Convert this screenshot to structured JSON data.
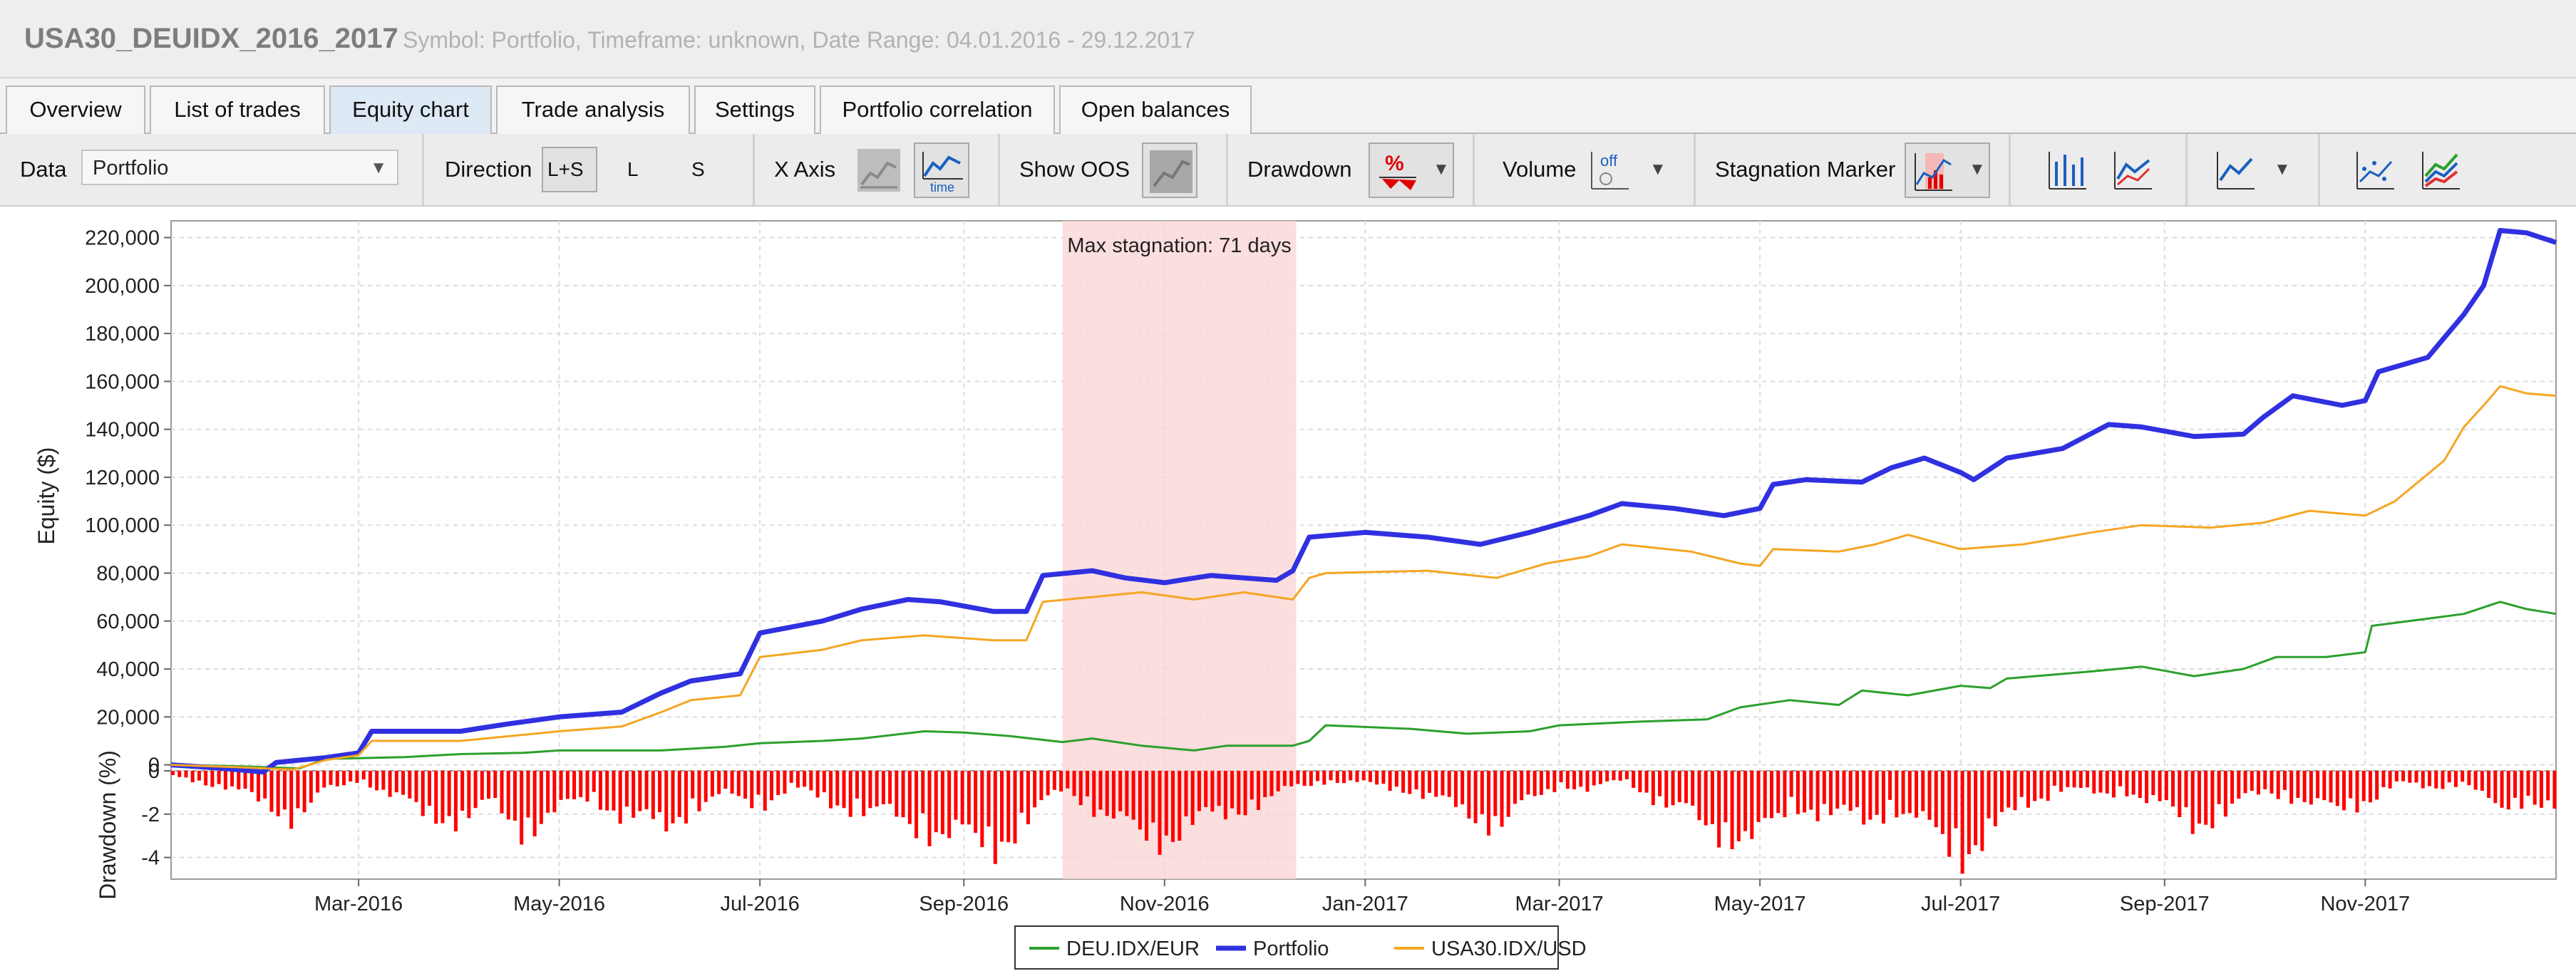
{
  "window": {
    "title": "USA30_DEUIDX_2016_2017",
    "subtitle": "Symbol: Portfolio, Timeframe: unknown, Date Range: 04.01.2016 - 29.12.2017"
  },
  "tabs": [
    {
      "label": "Overview",
      "active": false
    },
    {
      "label": "List of trades",
      "active": false
    },
    {
      "label": "Equity chart",
      "active": true
    },
    {
      "label": "Trade analysis",
      "active": false
    },
    {
      "label": "Settings",
      "active": false
    },
    {
      "label": "Portfolio correlation",
      "active": false
    },
    {
      "label": "Open balances",
      "active": false
    }
  ],
  "toolbar": {
    "data_label": "Data",
    "data_value": "Portfolio",
    "direction_label": "Direction",
    "direction_options": [
      "L+S",
      "L",
      "S"
    ],
    "direction_selected": "L+S",
    "xaxis_label": "X Axis",
    "xaxis_icons": [
      "trades-axis-icon",
      "time-axis-icon"
    ],
    "time_icon_text": "time",
    "oos_label": "Show OOS",
    "drawdown_label": "Drawdown",
    "drawdown_icon_text": "%",
    "volume_label": "Volume",
    "volume_icon_text": "off",
    "stagnation_label": "Stagnation Marker",
    "right_icons": [
      "bar-chart-icon",
      "line-chart-icon",
      "line-chart-dropdown-icon",
      "scatter-chart-icon",
      "multi-line-chart-icon"
    ]
  },
  "chart_data": {
    "type": "line",
    "title": "",
    "ylabel": "Equity ($)",
    "ylabel_bottom": "Drawdown (%)",
    "ylim": [
      -2500,
      227000
    ],
    "yticks": [
      0,
      20000,
      40000,
      60000,
      80000,
      100000,
      120000,
      140000,
      160000,
      180000,
      200000,
      220000
    ],
    "ytick_labels": [
      "0",
      "20,000",
      "40,000",
      "60,000",
      "80,000",
      "100,000",
      "120,000",
      "140,000",
      "160,000",
      "180,000",
      "200,000",
      "220,000"
    ],
    "xlim": [
      "2016-01-04",
      "2017-12-29"
    ],
    "xticks": [
      "2016-03-01",
      "2016-05-01",
      "2016-07-01",
      "2016-09-01",
      "2016-11-01",
      "2017-01-01",
      "2017-03-01",
      "2017-05-01",
      "2017-07-01",
      "2017-09-01",
      "2017-11-01"
    ],
    "xtick_labels": [
      "Mar-2016",
      "May-2016",
      "Jul-2016",
      "Sep-2016",
      "Nov-2016",
      "Jan-2017",
      "Mar-2017",
      "May-2017",
      "Jul-2017",
      "Sep-2017",
      "Nov-2017"
    ],
    "grid": true,
    "legend_position": "bottom-center",
    "stagnation": {
      "label": "Max stagnation: 71 days",
      "start": "2016-10-01",
      "end": "2016-12-11",
      "color": "#f9d3d3",
      "text_color": "#f08080"
    },
    "series": [
      {
        "name": "DEU.IDX/EUR",
        "color": "#2ca02c",
        "points": [
          [
            "2016-01-04",
            0
          ],
          [
            "2016-01-25",
            -600
          ],
          [
            "2016-02-12",
            -1500
          ],
          [
            "2016-02-20",
            2500
          ],
          [
            "2016-03-15",
            3200
          ],
          [
            "2016-04-01",
            4500
          ],
          [
            "2016-04-20",
            5000
          ],
          [
            "2016-05-01",
            6000
          ],
          [
            "2016-06-01",
            6000
          ],
          [
            "2016-06-20",
            7500
          ],
          [
            "2016-07-01",
            9000
          ],
          [
            "2016-07-20",
            10000
          ],
          [
            "2016-08-01",
            11000
          ],
          [
            "2016-08-20",
            14000
          ],
          [
            "2016-09-01",
            13500
          ],
          [
            "2016-09-15",
            12000
          ],
          [
            "2016-10-01",
            9500
          ],
          [
            "2016-10-10",
            11000
          ],
          [
            "2016-10-25",
            8000
          ],
          [
            "2016-11-10",
            6000
          ],
          [
            "2016-11-20",
            8000
          ],
          [
            "2016-12-10",
            8000
          ],
          [
            "2016-12-15",
            10000
          ],
          [
            "2016-12-20",
            16500
          ],
          [
            "2017-01-15",
            15000
          ],
          [
            "2017-02-01",
            13000
          ],
          [
            "2017-02-20",
            14000
          ],
          [
            "2017-03-01",
            16500
          ],
          [
            "2017-03-25",
            18000
          ],
          [
            "2017-04-15",
            19000
          ],
          [
            "2017-04-25",
            24000
          ],
          [
            "2017-05-10",
            27000
          ],
          [
            "2017-05-25",
            25000
          ],
          [
            "2017-06-01",
            31000
          ],
          [
            "2017-06-15",
            29000
          ],
          [
            "2017-07-01",
            33000
          ],
          [
            "2017-07-10",
            32000
          ],
          [
            "2017-07-15",
            36000
          ],
          [
            "2017-08-10",
            39000
          ],
          [
            "2017-08-25",
            41000
          ],
          [
            "2017-09-10",
            37000
          ],
          [
            "2017-09-25",
            40000
          ],
          [
            "2017-10-05",
            45000
          ],
          [
            "2017-10-20",
            45000
          ],
          [
            "2017-11-01",
            47000
          ],
          [
            "2017-11-03",
            58000
          ],
          [
            "2017-11-20",
            61000
          ],
          [
            "2017-12-01",
            63000
          ],
          [
            "2017-12-12",
            68000
          ],
          [
            "2017-12-20",
            65000
          ],
          [
            "2017-12-29",
            63000
          ]
        ]
      },
      {
        "name": "Portfolio",
        "color": "#3030e0",
        "points": [
          [
            "2016-01-04",
            0
          ],
          [
            "2016-01-20",
            -1500
          ],
          [
            "2016-02-01",
            -3000
          ],
          [
            "2016-02-05",
            1000
          ],
          [
            "2016-02-20",
            3000
          ],
          [
            "2016-03-01",
            5000
          ],
          [
            "2016-03-05",
            14000
          ],
          [
            "2016-04-01",
            14000
          ],
          [
            "2016-04-15",
            17000
          ],
          [
            "2016-05-01",
            20000
          ],
          [
            "2016-05-20",
            22000
          ],
          [
            "2016-06-01",
            30000
          ],
          [
            "2016-06-10",
            35000
          ],
          [
            "2016-06-25",
            38000
          ],
          [
            "2016-07-01",
            55000
          ],
          [
            "2016-07-20",
            60000
          ],
          [
            "2016-08-01",
            65000
          ],
          [
            "2016-08-15",
            69000
          ],
          [
            "2016-08-25",
            68000
          ],
          [
            "2016-09-10",
            64000
          ],
          [
            "2016-09-20",
            64000
          ],
          [
            "2016-09-25",
            79000
          ],
          [
            "2016-10-10",
            81000
          ],
          [
            "2016-10-20",
            78000
          ],
          [
            "2016-11-01",
            76000
          ],
          [
            "2016-11-15",
            79000
          ],
          [
            "2016-12-05",
            77000
          ],
          [
            "2016-12-10",
            81000
          ],
          [
            "2016-12-15",
            95000
          ],
          [
            "2017-01-01",
            97000
          ],
          [
            "2017-01-20",
            95000
          ],
          [
            "2017-02-05",
            92000
          ],
          [
            "2017-02-20",
            97000
          ],
          [
            "2017-03-10",
            104000
          ],
          [
            "2017-03-20",
            109000
          ],
          [
            "2017-04-05",
            107000
          ],
          [
            "2017-04-20",
            104000
          ],
          [
            "2017-05-01",
            107000
          ],
          [
            "2017-05-05",
            117000
          ],
          [
            "2017-05-15",
            119000
          ],
          [
            "2017-06-01",
            118000
          ],
          [
            "2017-06-10",
            124000
          ],
          [
            "2017-06-20",
            128000
          ],
          [
            "2017-07-01",
            122000
          ],
          [
            "2017-07-05",
            119000
          ],
          [
            "2017-07-15",
            128000
          ],
          [
            "2017-08-01",
            132000
          ],
          [
            "2017-08-15",
            142000
          ],
          [
            "2017-08-25",
            141000
          ],
          [
            "2017-09-10",
            137000
          ],
          [
            "2017-09-25",
            138000
          ],
          [
            "2017-10-01",
            145000
          ],
          [
            "2017-10-10",
            154000
          ],
          [
            "2017-10-25",
            150000
          ],
          [
            "2017-11-01",
            152000
          ],
          [
            "2017-11-05",
            164000
          ],
          [
            "2017-11-20",
            170000
          ],
          [
            "2017-12-01",
            188000
          ],
          [
            "2017-12-07",
            200000
          ],
          [
            "2017-12-12",
            223000
          ],
          [
            "2017-12-20",
            222000
          ],
          [
            "2017-12-29",
            218000
          ]
        ]
      },
      {
        "name": "USA30.IDX/USD",
        "color": "#f5a623",
        "points": [
          [
            "2016-01-04",
            0
          ],
          [
            "2016-01-25",
            -1000
          ],
          [
            "2016-02-10",
            -2000
          ],
          [
            "2016-02-20",
            2000
          ],
          [
            "2016-03-01",
            4000
          ],
          [
            "2016-03-05",
            10000
          ],
          [
            "2016-04-01",
            10000
          ],
          [
            "2016-05-01",
            14000
          ],
          [
            "2016-05-20",
            16000
          ],
          [
            "2016-06-01",
            22000
          ],
          [
            "2016-06-10",
            27000
          ],
          [
            "2016-06-25",
            29000
          ],
          [
            "2016-07-01",
            45000
          ],
          [
            "2016-07-20",
            48000
          ],
          [
            "2016-08-01",
            52000
          ],
          [
            "2016-08-20",
            54000
          ],
          [
            "2016-09-10",
            52000
          ],
          [
            "2016-09-20",
            52000
          ],
          [
            "2016-09-25",
            68000
          ],
          [
            "2016-10-10",
            70000
          ],
          [
            "2016-10-25",
            72000
          ],
          [
            "2016-11-10",
            69000
          ],
          [
            "2016-11-25",
            72000
          ],
          [
            "2016-12-10",
            69000
          ],
          [
            "2016-12-15",
            78000
          ],
          [
            "2016-12-20",
            80000
          ],
          [
            "2017-01-20",
            81000
          ],
          [
            "2017-02-10",
            78000
          ],
          [
            "2017-02-25",
            84000
          ],
          [
            "2017-03-10",
            87000
          ],
          [
            "2017-03-20",
            92000
          ],
          [
            "2017-04-10",
            89000
          ],
          [
            "2017-04-25",
            84000
          ],
          [
            "2017-05-01",
            83000
          ],
          [
            "2017-05-05",
            90000
          ],
          [
            "2017-05-25",
            89000
          ],
          [
            "2017-06-05",
            92000
          ],
          [
            "2017-06-15",
            96000
          ],
          [
            "2017-07-01",
            90000
          ],
          [
            "2017-07-20",
            92000
          ],
          [
            "2017-08-10",
            97000
          ],
          [
            "2017-08-25",
            100000
          ],
          [
            "2017-09-15",
            99000
          ],
          [
            "2017-10-01",
            101000
          ],
          [
            "2017-10-15",
            106000
          ],
          [
            "2017-11-01",
            104000
          ],
          [
            "2017-11-10",
            110000
          ],
          [
            "2017-11-25",
            127000
          ],
          [
            "2017-12-01",
            141000
          ],
          [
            "2017-12-07",
            150000
          ],
          [
            "2017-12-12",
            158000
          ],
          [
            "2017-12-20",
            155000
          ],
          [
            "2017-12-29",
            154000
          ]
        ]
      }
    ],
    "drawdown": {
      "ylim": [
        -5,
        0
      ],
      "yticks": [
        0,
        -2,
        -4
      ],
      "ytick_labels": [
        "0",
        "-2",
        "-4"
      ],
      "color": "#ff0000",
      "points": [
        [
          "2016-01-04",
          -0.3
        ],
        [
          "2016-01-20",
          -1.0
        ],
        [
          "2016-02-01",
          -2.0
        ],
        [
          "2016-02-10",
          -2.8
        ],
        [
          "2016-02-20",
          -1.2
        ],
        [
          "2016-03-01",
          -0.5
        ],
        [
          "2016-03-10",
          -1.5
        ],
        [
          "2016-03-20",
          -2.5
        ],
        [
          "2016-04-01",
          -3.0
        ],
        [
          "2016-04-10",
          -2.0
        ],
        [
          "2016-04-20",
          -3.6
        ],
        [
          "2016-05-01",
          -2.4
        ],
        [
          "2016-05-10",
          -1.5
        ],
        [
          "2016-05-20",
          -2.8
        ],
        [
          "2016-06-01",
          -3.4
        ],
        [
          "2016-06-10",
          -2.2
        ],
        [
          "2016-06-20",
          -1.5
        ],
        [
          "2016-07-01",
          -2.0
        ],
        [
          "2016-07-10",
          -1.0
        ],
        [
          "2016-07-20",
          -1.8
        ],
        [
          "2016-08-01",
          -2.4
        ],
        [
          "2016-08-10",
          -2.8
        ],
        [
          "2016-08-20",
          -3.5
        ],
        [
          "2016-09-01",
          -4.2
        ],
        [
          "2016-09-10",
          -4.5
        ],
        [
          "2016-09-20",
          -3.0
        ],
        [
          "2016-10-01",
          -1.0
        ],
        [
          "2016-10-10",
          -2.2
        ],
        [
          "2016-10-20",
          -3.6
        ],
        [
          "2016-11-01",
          -4.0
        ],
        [
          "2016-11-10",
          -3.2
        ],
        [
          "2016-11-20",
          -2.5
        ],
        [
          "2016-12-01",
          -1.8
        ],
        [
          "2016-12-10",
          -1.0
        ],
        [
          "2016-12-20",
          -0.6
        ],
        [
          "2017-01-01",
          -0.8
        ],
        [
          "2017-01-15",
          -1.2
        ],
        [
          "2017-02-01",
          -2.6
        ],
        [
          "2017-02-10",
          -3.2
        ],
        [
          "2017-02-20",
          -1.8
        ],
        [
          "2017-03-01",
          -0.8
        ],
        [
          "2017-03-10",
          -1.2
        ],
        [
          "2017-03-20",
          -0.5
        ],
        [
          "2017-04-01",
          -2.0
        ],
        [
          "2017-04-10",
          -2.8
        ],
        [
          "2017-04-20",
          -3.8
        ],
        [
          "2017-05-01",
          -4.2
        ],
        [
          "2017-05-10",
          -2.0
        ],
        [
          "2017-05-20",
          -2.6
        ],
        [
          "2017-06-01",
          -3.0
        ],
        [
          "2017-06-10",
          -2.2
        ],
        [
          "2017-06-20",
          -3.5
        ],
        [
          "2017-07-01",
          -4.9
        ],
        [
          "2017-07-10",
          -3.8
        ],
        [
          "2017-07-20",
          -2.0
        ],
        [
          "2017-08-01",
          -1.0
        ],
        [
          "2017-08-10",
          -1.5
        ],
        [
          "2017-08-20",
          -1.2
        ],
        [
          "2017-09-01",
          -2.4
        ],
        [
          "2017-09-10",
          -3.2
        ],
        [
          "2017-09-20",
          -2.4
        ],
        [
          "2017-10-01",
          -1.2
        ],
        [
          "2017-10-10",
          -1.6
        ],
        [
          "2017-10-20",
          -2.5
        ],
        [
          "2017-11-01",
          -1.8
        ],
        [
          "2017-11-10",
          -0.8
        ],
        [
          "2017-11-20",
          -1.0
        ],
        [
          "2017-12-01",
          -0.7
        ],
        [
          "2017-12-10",
          -2.4
        ],
        [
          "2017-12-20",
          -1.6
        ],
        [
          "2017-12-29",
          -2.5
        ]
      ]
    }
  }
}
